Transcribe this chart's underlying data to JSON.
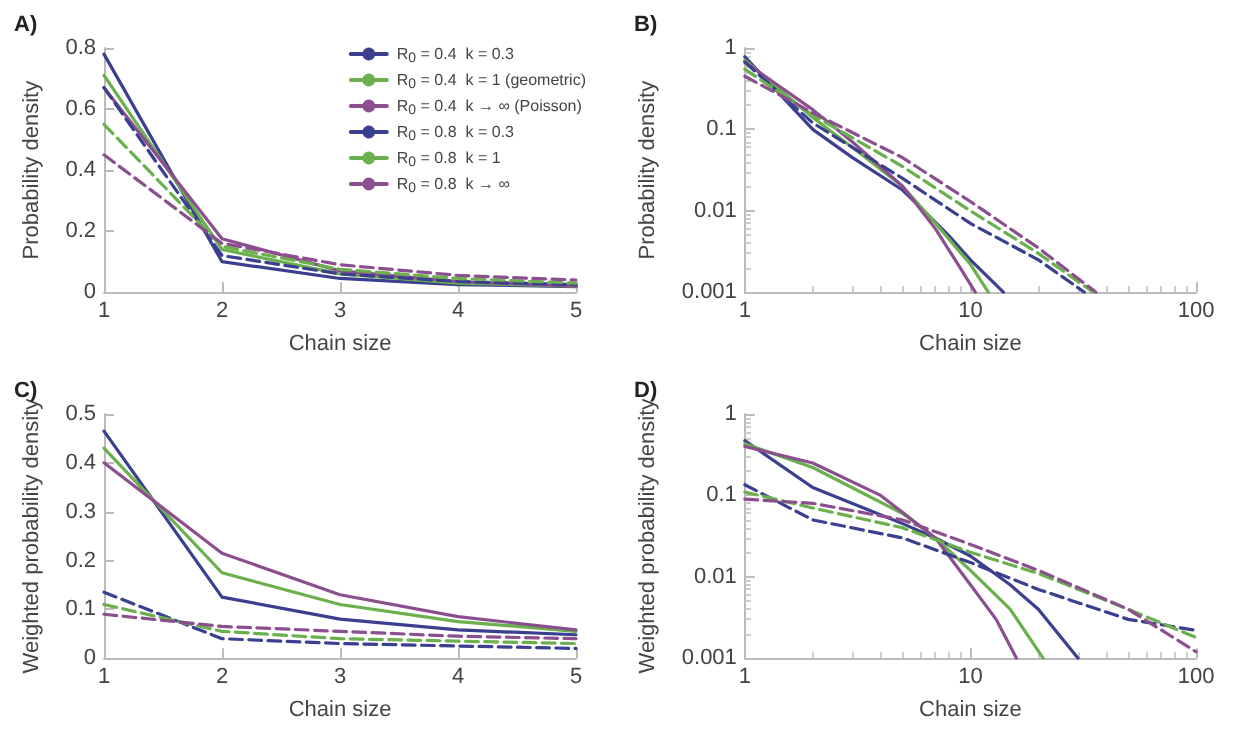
{
  "chart_data": [
    {
      "type": "line",
      "title": "A)",
      "xlabel": "Chain size",
      "ylabel": "Probability density",
      "x": [
        1,
        2,
        3,
        4,
        5
      ],
      "xlim": [
        1,
        5
      ],
      "xticks": [
        1,
        2,
        3,
        4,
        5
      ],
      "ylim": [
        0,
        0.8
      ],
      "yticks": [
        0,
        0.2,
        0.4,
        0.6,
        0.8
      ],
      "grid": false,
      "legend": "top right",
      "marker": "none",
      "series": [
        {
          "name": "R$_{0}$ = 0.4  k = 0.3",
          "color": "#3b3f8f",
          "line_style": "solid",
          "values": [
            0.78,
            0.1,
            0.045,
            0.025,
            0.018
          ]
        },
        {
          "name": "R$_{0}$ = 0.4  k = 1 (geometric)",
          "color": "#6ab04c",
          "line_style": "solid",
          "values": [
            0.71,
            0.14,
            0.06,
            0.03,
            0.02
          ]
        },
        {
          "name": "R$_{0}$ = 0.4  k → ∞ (Poisson)",
          "color": "#8b4f8f",
          "line_style": "solid",
          "values": [
            0.67,
            0.175,
            0.07,
            0.035,
            0.02
          ]
        },
        {
          "name": "R$_{0}$ = 0.8  k = 0.3",
          "color": "#3b3f8f",
          "line_style": "dashed",
          "values": [
            0.67,
            0.12,
            0.06,
            0.035,
            0.025
          ]
        },
        {
          "name": "R$_{0}$ = 0.8  k = 1",
          "color": "#6ab04c",
          "line_style": "dashed",
          "values": [
            0.55,
            0.15,
            0.075,
            0.045,
            0.03
          ]
        },
        {
          "name": "R$_{0}$ = 0.8  k → ∞",
          "color": "#8b4f8f",
          "line_style": "dashed",
          "values": [
            0.45,
            0.16,
            0.09,
            0.055,
            0.04
          ]
        }
      ]
    },
    {
      "type": "line",
      "title": "B)",
      "xlabel": "Chain size",
      "ylabel": "Probability density",
      "log": "xy",
      "xlim": [
        1,
        100
      ],
      "xticks": [
        1,
        10,
        100
      ],
      "ylim": [
        0.001,
        1
      ],
      "yticks": [
        0.001,
        0.01,
        0.1,
        1
      ],
      "grid": false,
      "marker": "none",
      "series": [
        {
          "color": "#3b3f8f",
          "line_style": "solid",
          "x": [
            1,
            2,
            3,
            5,
            6,
            8,
            10,
            14
          ],
          "values": [
            0.78,
            0.1,
            0.045,
            0.018,
            0.011,
            0.005,
            0.0025,
            0.001
          ]
        },
        {
          "color": "#6ab04c",
          "line_style": "solid",
          "x": [
            1,
            2,
            3,
            5,
            7,
            10,
            12
          ],
          "values": [
            0.71,
            0.14,
            0.06,
            0.02,
            0.007,
            0.0022,
            0.001
          ]
        },
        {
          "color": "#8b4f8f",
          "line_style": "solid",
          "x": [
            1,
            2,
            3,
            5,
            7,
            9,
            10.5
          ],
          "values": [
            0.67,
            0.175,
            0.07,
            0.02,
            0.006,
            0.002,
            0.001
          ]
        },
        {
          "color": "#3b3f8f",
          "line_style": "dashed",
          "x": [
            1,
            2,
            5,
            10,
            20,
            32
          ],
          "values": [
            0.67,
            0.12,
            0.025,
            0.007,
            0.0025,
            0.001
          ]
        },
        {
          "color": "#6ab04c",
          "line_style": "dashed",
          "x": [
            1,
            2,
            5,
            10,
            20,
            35
          ],
          "values": [
            0.55,
            0.15,
            0.035,
            0.01,
            0.003,
            0.001
          ]
        },
        {
          "color": "#8b4f8f",
          "line_style": "dashed",
          "x": [
            1,
            2,
            5,
            10,
            20,
            36
          ],
          "values": [
            0.45,
            0.16,
            0.045,
            0.013,
            0.0035,
            0.001
          ]
        }
      ]
    },
    {
      "type": "line",
      "title": "C)",
      "xlabel": "Chain size",
      "ylabel": "Weighted probability density",
      "x": [
        1,
        2,
        3,
        4,
        5
      ],
      "xlim": [
        1,
        5
      ],
      "xticks": [
        1,
        2,
        3,
        4,
        5
      ],
      "ylim": [
        0,
        0.5
      ],
      "yticks": [
        0,
        0.1,
        0.2,
        0.3,
        0.4,
        0.5
      ],
      "grid": false,
      "marker": "none",
      "series": [
        {
          "color": "#3b3f8f",
          "line_style": "solid",
          "values": [
            0.465,
            0.125,
            0.08,
            0.058,
            0.048
          ]
        },
        {
          "color": "#6ab04c",
          "line_style": "solid",
          "values": [
            0.43,
            0.175,
            0.11,
            0.075,
            0.055
          ]
        },
        {
          "color": "#8b4f8f",
          "line_style": "solid",
          "values": [
            0.4,
            0.215,
            0.13,
            0.085,
            0.058
          ]
        },
        {
          "color": "#3b3f8f",
          "line_style": "dashed",
          "values": [
            0.135,
            0.04,
            0.03,
            0.025,
            0.02
          ]
        },
        {
          "color": "#6ab04c",
          "line_style": "dashed",
          "values": [
            0.11,
            0.055,
            0.04,
            0.035,
            0.03
          ]
        },
        {
          "color": "#8b4f8f",
          "line_style": "dashed",
          "values": [
            0.09,
            0.065,
            0.055,
            0.045,
            0.04
          ]
        }
      ]
    },
    {
      "type": "line",
      "title": "D)",
      "xlabel": "Chain size",
      "ylabel": "Weighted probability density",
      "log": "xy",
      "xlim": [
        1,
        100
      ],
      "xticks": [
        1,
        10,
        100
      ],
      "ylim": [
        0.001,
        1
      ],
      "yticks": [
        0.001,
        0.01,
        0.1,
        1
      ],
      "grid": false,
      "marker": "none",
      "series": [
        {
          "color": "#3b3f8f",
          "line_style": "solid",
          "x": [
            1,
            2,
            5,
            7,
            10,
            15,
            20,
            30
          ],
          "values": [
            0.47,
            0.125,
            0.045,
            0.03,
            0.018,
            0.008,
            0.004,
            0.001
          ]
        },
        {
          "color": "#6ab04c",
          "line_style": "solid",
          "x": [
            1,
            2,
            5,
            7,
            10,
            15,
            21
          ],
          "values": [
            0.43,
            0.22,
            0.06,
            0.03,
            0.012,
            0.004,
            0.001
          ]
        },
        {
          "color": "#8b4f8f",
          "line_style": "solid",
          "x": [
            1,
            2,
            4,
            7,
            10,
            13,
            16
          ],
          "values": [
            0.4,
            0.25,
            0.1,
            0.03,
            0.008,
            0.003,
            0.001
          ]
        },
        {
          "color": "#3b3f8f",
          "line_style": "dashed",
          "x": [
            1,
            2,
            5,
            10,
            20,
            50,
            100
          ],
          "values": [
            0.135,
            0.05,
            0.03,
            0.015,
            0.007,
            0.003,
            0.0022
          ]
        },
        {
          "color": "#6ab04c",
          "line_style": "dashed",
          "x": [
            1,
            2,
            5,
            10,
            20,
            50,
            100
          ],
          "values": [
            0.11,
            0.07,
            0.04,
            0.02,
            0.011,
            0.004,
            0.0018
          ]
        },
        {
          "color": "#8b4f8f",
          "line_style": "dashed",
          "x": [
            1,
            2,
            5,
            10,
            20,
            50,
            100
          ],
          "values": [
            0.09,
            0.08,
            0.05,
            0.025,
            0.012,
            0.004,
            0.0012
          ]
        }
      ]
    }
  ]
}
